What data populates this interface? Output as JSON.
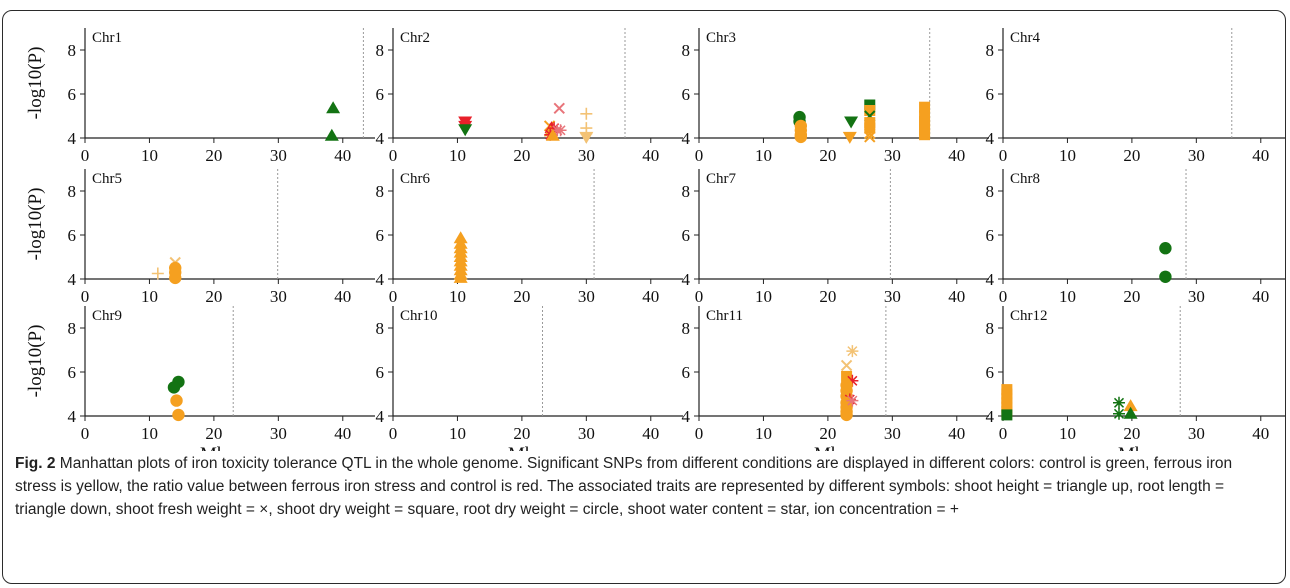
{
  "figure": {
    "caption_label": "Fig. 2",
    "caption_text": "Manhattan plots of iron toxicity tolerance QTL in the whole genome. Significant SNPs from different conditions are displayed in different colors: control is green, ferrous iron stress is yellow, the ratio value between ferrous iron stress and control is red. The associated traits are represented by different symbols: shoot height = triangle up, root length = triangle down, shoot fresh weight = ×, shoot dry weight = square, root dry weight = circle, shoot water content = star, ion concentration = +"
  },
  "colors": {
    "control": "#137313",
    "ferrous": "#f5a020",
    "ratio": "#e8202a",
    "ratio_light": "#e8747a",
    "ferrous_light": "#f3c274",
    "threshold_line": "#9a9a9a"
  },
  "chart_data": {
    "type": "scatter",
    "layout": "4 columns x 3 rows of panels",
    "ylabel": "-log10(P)",
    "xlabel": "Mbp",
    "xlim": [
      0,
      45
    ],
    "ylim": [
      4,
      9
    ],
    "xticks": [
      0,
      10,
      20,
      30,
      40
    ],
    "yticks": [
      4,
      6,
      8
    ],
    "panels": [
      {
        "label": "Chr1",
        "chrom_end": 43.2,
        "points": [
          {
            "x": 38.5,
            "y": 5.35,
            "cond": "control",
            "trait": "triangle-up"
          },
          {
            "x": 38.3,
            "y": 4.1,
            "cond": "control",
            "trait": "triangle-up"
          }
        ]
      },
      {
        "label": "Chr2",
        "chrom_end": 36.0,
        "points": [
          {
            "x": 11.2,
            "y": 4.75,
            "cond": "ratio",
            "trait": "triangle-down"
          },
          {
            "x": 11.2,
            "y": 4.55,
            "cond": "ratio",
            "trait": "triangle-down"
          },
          {
            "x": 11.2,
            "y": 4.4,
            "cond": "control",
            "trait": "triangle-down"
          },
          {
            "x": 24.3,
            "y": 4.55,
            "cond": "ferrous",
            "trait": "times"
          },
          {
            "x": 24.6,
            "y": 4.45,
            "cond": "ratio",
            "trait": "triangle-up"
          },
          {
            "x": 24.5,
            "y": 4.3,
            "cond": "ferrous",
            "trait": "triangle-up"
          },
          {
            "x": 24.4,
            "y": 4.15,
            "cond": "ratio",
            "trait": "star"
          },
          {
            "x": 25.0,
            "y": 4.45,
            "cond": "ratio",
            "trait": "star"
          },
          {
            "x": 25.5,
            "y": 4.35,
            "cond": "ratio_light",
            "trait": "star"
          },
          {
            "x": 26.0,
            "y": 4.35,
            "cond": "ratio_light",
            "trait": "star"
          },
          {
            "x": 25.8,
            "y": 5.35,
            "cond": "ratio_light",
            "trait": "times"
          },
          {
            "x": 24.8,
            "y": 4.1,
            "cond": "ferrous",
            "trait": "triangle-up"
          },
          {
            "x": 30.0,
            "y": 5.1,
            "cond": "ferrous_light",
            "trait": "plus"
          },
          {
            "x": 30.0,
            "y": 4.45,
            "cond": "ferrous_light",
            "trait": "plus"
          },
          {
            "x": 30.0,
            "y": 4.2,
            "cond": "ferrous_light",
            "trait": "plus"
          },
          {
            "x": 30.0,
            "y": 4.05,
            "cond": "ferrous_light",
            "trait": "triangle-down"
          }
        ]
      },
      {
        "label": "Chr3",
        "chrom_end": 35.8,
        "points": [
          {
            "x": 15.6,
            "y": 4.95,
            "cond": "control",
            "trait": "circle"
          },
          {
            "x": 15.6,
            "y": 4.75,
            "cond": "control",
            "trait": "circle"
          },
          {
            "x": 15.8,
            "y": 4.55,
            "cond": "ferrous",
            "trait": "circle"
          },
          {
            "x": 15.8,
            "y": 4.35,
            "cond": "ferrous",
            "trait": "circle"
          },
          {
            "x": 15.8,
            "y": 4.15,
            "cond": "ferrous",
            "trait": "circle"
          },
          {
            "x": 15.8,
            "y": 4.05,
            "cond": "ferrous",
            "trait": "circle"
          },
          {
            "x": 23.6,
            "y": 4.75,
            "cond": "control",
            "trait": "triangle-down"
          },
          {
            "x": 23.4,
            "y": 4.05,
            "cond": "ferrous",
            "trait": "triangle-down"
          },
          {
            "x": 26.5,
            "y": 5.5,
            "cond": "control",
            "trait": "square"
          },
          {
            "x": 26.5,
            "y": 5.25,
            "cond": "ferrous",
            "trait": "square"
          },
          {
            "x": 26.5,
            "y": 5.0,
            "cond": "control",
            "trait": "times"
          },
          {
            "x": 26.5,
            "y": 4.7,
            "cond": "ferrous",
            "trait": "square"
          },
          {
            "x": 26.5,
            "y": 4.45,
            "cond": "ferrous",
            "trait": "square"
          },
          {
            "x": 26.5,
            "y": 4.2,
            "cond": "ferrous",
            "trait": "times"
          },
          {
            "x": 26.5,
            "y": 4.05,
            "cond": "ferrous",
            "trait": "times"
          },
          {
            "x": 35.0,
            "y": 5.4,
            "cond": "ferrous",
            "trait": "square"
          },
          {
            "x": 35.0,
            "y": 5.0,
            "cond": "ferrous",
            "trait": "square"
          },
          {
            "x": 35.0,
            "y": 4.75,
            "cond": "ferrous",
            "trait": "square"
          },
          {
            "x": 35.0,
            "y": 4.55,
            "cond": "ferrous",
            "trait": "square"
          },
          {
            "x": 35.0,
            "y": 4.35,
            "cond": "ferrous",
            "trait": "square"
          },
          {
            "x": 35.0,
            "y": 4.15,
            "cond": "ferrous",
            "trait": "square"
          }
        ]
      },
      {
        "label": "Chr4",
        "chrom_end": 35.5,
        "points": []
      },
      {
        "label": "Chr5",
        "chrom_end": 29.9,
        "points": [
          {
            "x": 11.3,
            "y": 4.25,
            "cond": "ferrous_light",
            "trait": "plus"
          },
          {
            "x": 14.0,
            "y": 4.75,
            "cond": "ferrous_light",
            "trait": "times"
          },
          {
            "x": 14.0,
            "y": 4.5,
            "cond": "ferrous",
            "trait": "circle"
          },
          {
            "x": 14.0,
            "y": 4.3,
            "cond": "ferrous",
            "trait": "circle"
          },
          {
            "x": 14.0,
            "y": 4.05,
            "cond": "ferrous",
            "trait": "circle"
          }
        ]
      },
      {
        "label": "Chr6",
        "chrom_end": 31.2,
        "points": [
          {
            "x": 10.5,
            "y": 5.85,
            "cond": "ferrous",
            "trait": "triangle-up"
          },
          {
            "x": 10.5,
            "y": 5.6,
            "cond": "ferrous",
            "trait": "triangle-up"
          },
          {
            "x": 10.5,
            "y": 5.4,
            "cond": "ferrous",
            "trait": "triangle-up"
          },
          {
            "x": 10.5,
            "y": 5.2,
            "cond": "ferrous",
            "trait": "triangle-up"
          },
          {
            "x": 10.5,
            "y": 5.0,
            "cond": "ferrous",
            "trait": "triangle-up"
          },
          {
            "x": 10.5,
            "y": 4.8,
            "cond": "ferrous",
            "trait": "triangle-up"
          },
          {
            "x": 10.5,
            "y": 4.6,
            "cond": "ferrous",
            "trait": "triangle-up"
          },
          {
            "x": 10.5,
            "y": 4.4,
            "cond": "ferrous",
            "trait": "triangle-up"
          },
          {
            "x": 10.5,
            "y": 4.2,
            "cond": "ferrous",
            "trait": "triangle-up"
          },
          {
            "x": 10.5,
            "y": 4.05,
            "cond": "ferrous",
            "trait": "triangle-up"
          }
        ]
      },
      {
        "label": "Chr7",
        "chrom_end": 29.7,
        "points": []
      },
      {
        "label": "Chr8",
        "chrom_end": 28.4,
        "points": [
          {
            "x": 25.2,
            "y": 5.4,
            "cond": "control",
            "trait": "circle"
          },
          {
            "x": 25.2,
            "y": 4.1,
            "cond": "control",
            "trait": "circle"
          }
        ]
      },
      {
        "label": "Chr9",
        "chrom_end": 23.0,
        "points": [
          {
            "x": 14.5,
            "y": 5.55,
            "cond": "control",
            "trait": "circle"
          },
          {
            "x": 13.8,
            "y": 5.3,
            "cond": "control",
            "trait": "circle"
          },
          {
            "x": 14.2,
            "y": 4.7,
            "cond": "ferrous",
            "trait": "circle"
          },
          {
            "x": 14.5,
            "y": 4.05,
            "cond": "ferrous",
            "trait": "circle"
          }
        ]
      },
      {
        "label": "Chr10",
        "chrom_end": 23.2,
        "points": []
      },
      {
        "label": "Chr11",
        "chrom_end": 29.0,
        "points": [
          {
            "x": 23.8,
            "y": 6.95,
            "cond": "ferrous_light",
            "trait": "star"
          },
          {
            "x": 22.9,
            "y": 6.3,
            "cond": "ferrous_light",
            "trait": "times"
          },
          {
            "x": 22.9,
            "y": 5.8,
            "cond": "ferrous",
            "trait": "square"
          },
          {
            "x": 23.8,
            "y": 5.6,
            "cond": "ratio",
            "trait": "star"
          },
          {
            "x": 22.9,
            "y": 5.4,
            "cond": "ferrous",
            "trait": "circle"
          },
          {
            "x": 22.9,
            "y": 5.15,
            "cond": "ferrous",
            "trait": "circle"
          },
          {
            "x": 22.9,
            "y": 4.9,
            "cond": "ferrous",
            "trait": "circle"
          },
          {
            "x": 23.4,
            "y": 4.75,
            "cond": "ratio",
            "trait": "star"
          },
          {
            "x": 22.9,
            "y": 4.6,
            "cond": "ferrous",
            "trait": "circle"
          },
          {
            "x": 22.9,
            "y": 4.4,
            "cond": "ferrous",
            "trait": "circle"
          },
          {
            "x": 22.9,
            "y": 4.2,
            "cond": "ferrous",
            "trait": "circle"
          },
          {
            "x": 22.9,
            "y": 4.05,
            "cond": "ferrous",
            "trait": "circle"
          },
          {
            "x": 23.8,
            "y": 4.7,
            "cond": "ratio_light",
            "trait": "star"
          }
        ]
      },
      {
        "label": "Chr12",
        "chrom_end": 27.5,
        "points": [
          {
            "x": 0.6,
            "y": 5.2,
            "cond": "ferrous",
            "trait": "square"
          },
          {
            "x": 0.6,
            "y": 5.0,
            "cond": "ferrous",
            "trait": "square"
          },
          {
            "x": 0.6,
            "y": 4.8,
            "cond": "ferrous",
            "trait": "square"
          },
          {
            "x": 0.6,
            "y": 4.6,
            "cond": "ferrous",
            "trait": "square"
          },
          {
            "x": 0.6,
            "y": 4.4,
            "cond": "ferrous",
            "trait": "square"
          },
          {
            "x": 0.6,
            "y": 4.2,
            "cond": "ferrous",
            "trait": "square"
          },
          {
            "x": 0.6,
            "y": 4.05,
            "cond": "control",
            "trait": "square"
          },
          {
            "x": 18.0,
            "y": 4.6,
            "cond": "control",
            "trait": "star"
          },
          {
            "x": 18.0,
            "y": 4.1,
            "cond": "control",
            "trait": "star"
          },
          {
            "x": 19.8,
            "y": 4.45,
            "cond": "ferrous",
            "trait": "triangle-up"
          },
          {
            "x": 19.8,
            "y": 4.1,
            "cond": "control",
            "trait": "triangle-up"
          }
        ]
      }
    ]
  }
}
